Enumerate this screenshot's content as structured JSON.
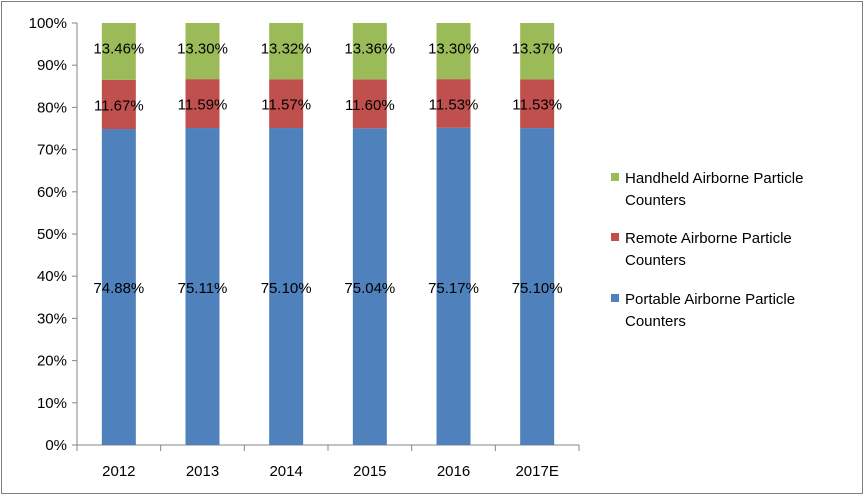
{
  "chart_data": {
    "type": "bar",
    "stacked": true,
    "percent_stacked": true,
    "categories": [
      "2012",
      "2013",
      "2014",
      "2015",
      "2016",
      "2017E"
    ],
    "series": [
      {
        "name": "Portable Airborne Particle Counters",
        "color": "#4f81bd",
        "values": [
          74.88,
          75.11,
          75.1,
          75.04,
          75.17,
          75.1
        ],
        "labels": [
          "74.88%",
          "75.11%",
          "75.10%",
          "75.04%",
          "75.17%",
          "75.10%"
        ]
      },
      {
        "name": "Remote Airborne Particle Counters",
        "color": "#c0504d",
        "values": [
          11.67,
          11.59,
          11.57,
          11.6,
          11.53,
          11.53
        ],
        "labels": [
          "11.67%",
          "11.59%",
          "11.57%",
          "11.60%",
          "11.53%",
          "11.53%"
        ]
      },
      {
        "name": "Handheld Airborne Particle Counters",
        "color": "#9bbb59",
        "values": [
          13.46,
          13.3,
          13.32,
          13.36,
          13.3,
          13.37
        ],
        "labels": [
          "13.46%",
          "13.30%",
          "13.32%",
          "13.36%",
          "13.30%",
          "13.37%"
        ]
      }
    ],
    "y_ticks": [
      "0%",
      "10%",
      "20%",
      "30%",
      "40%",
      "50%",
      "60%",
      "70%",
      "80%",
      "90%",
      "100%"
    ],
    "ylim": [
      0,
      100
    ],
    "grid": false,
    "legend": {
      "position": "right",
      "order": [
        2,
        1,
        0
      ],
      "entries": [
        [
          "Handheld Airborne Particle",
          "Counters"
        ],
        [
          "Remote Airborne Particle",
          "Counters"
        ],
        [
          "Portable Airborne Particle",
          "Counters"
        ]
      ]
    }
  }
}
